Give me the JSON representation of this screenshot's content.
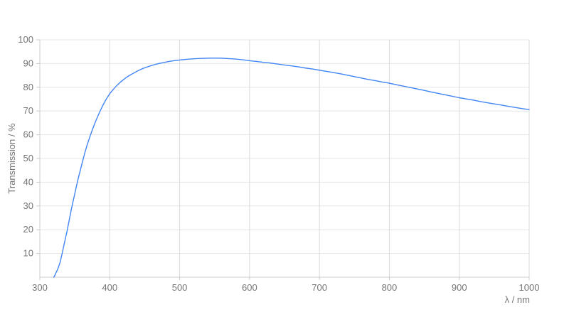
{
  "chart_data": {
    "type": "line",
    "title": "",
    "xlabel": "λ / nm",
    "ylabel": "Transmission / %",
    "xlim": [
      300,
      1000
    ],
    "ylim": [
      0,
      100
    ],
    "x_ticks": [
      300,
      400,
      500,
      600,
      700,
      800,
      900,
      1000
    ],
    "y_ticks": [
      10,
      20,
      30,
      40,
      50,
      60,
      70,
      80,
      90,
      100
    ],
    "grid": true,
    "legend": false,
    "series": [
      {
        "name": "transmission-curve",
        "color": "#4285f4",
        "points": [
          [
            320,
            0
          ],
          [
            321.5,
            0.8
          ],
          [
            323,
            1.8
          ],
          [
            325,
            3
          ],
          [
            327,
            4.5
          ],
          [
            329,
            6.3
          ],
          [
            331,
            8.8
          ],
          [
            333,
            11.5
          ],
          [
            336,
            15.5
          ],
          [
            339,
            19.5
          ],
          [
            342,
            24
          ],
          [
            345,
            28.5
          ],
          [
            348,
            32.5
          ],
          [
            351,
            36.5
          ],
          [
            354,
            40.5
          ],
          [
            357,
            44
          ],
          [
            360,
            47.5
          ],
          [
            364,
            52
          ],
          [
            368,
            56
          ],
          [
            372,
            59.5
          ],
          [
            376,
            62.8
          ],
          [
            380,
            65.8
          ],
          [
            385,
            69.2
          ],
          [
            390,
            72.3
          ],
          [
            395,
            75
          ],
          [
            400,
            77.3
          ],
          [
            405,
            79.1
          ],
          [
            410,
            80.7
          ],
          [
            415,
            82.1
          ],
          [
            420,
            83.3
          ],
          [
            425,
            84.4
          ],
          [
            430,
            85.3
          ],
          [
            435,
            86.1
          ],
          [
            440,
            86.9
          ],
          [
            445,
            87.6
          ],
          [
            450,
            88.2
          ],
          [
            455,
            88.7
          ],
          [
            460,
            89.2
          ],
          [
            465,
            89.6
          ],
          [
            470,
            90
          ],
          [
            475,
            90.3
          ],
          [
            480,
            90.6
          ],
          [
            485,
            90.9
          ],
          [
            490,
            91.1
          ],
          [
            495,
            91.3
          ],
          [
            500,
            91.5
          ],
          [
            510,
            91.8
          ],
          [
            520,
            92
          ],
          [
            530,
            92.15
          ],
          [
            540,
            92.25
          ],
          [
            550,
            92.3
          ],
          [
            560,
            92.25
          ],
          [
            570,
            92.1
          ],
          [
            580,
            91.9
          ],
          [
            590,
            91.6
          ],
          [
            600,
            91.2
          ],
          [
            610,
            90.9
          ],
          [
            620,
            90.5
          ],
          [
            630,
            90.2
          ],
          [
            640,
            89.8
          ],
          [
            650,
            89.4
          ],
          [
            660,
            89
          ],
          [
            670,
            88.6
          ],
          [
            680,
            88.1
          ],
          [
            690,
            87.7
          ],
          [
            700,
            87.2
          ],
          [
            710,
            86.7
          ],
          [
            720,
            86.2
          ],
          [
            730,
            85.7
          ],
          [
            740,
            85.1
          ],
          [
            750,
            84.5
          ],
          [
            760,
            83.9
          ],
          [
            770,
            83.3
          ],
          [
            780,
            82.8
          ],
          [
            790,
            82.2
          ],
          [
            800,
            81.7
          ],
          [
            810,
            81.1
          ],
          [
            820,
            80.5
          ],
          [
            830,
            79.9
          ],
          [
            840,
            79.3
          ],
          [
            850,
            78.7
          ],
          [
            860,
            78
          ],
          [
            870,
            77.4
          ],
          [
            880,
            76.8
          ],
          [
            890,
            76.2
          ],
          [
            900,
            75.6
          ],
          [
            910,
            75.1
          ],
          [
            920,
            74.6
          ],
          [
            930,
            74
          ],
          [
            940,
            73.5
          ],
          [
            950,
            73
          ],
          [
            960,
            72.5
          ],
          [
            970,
            72
          ],
          [
            980,
            71.5
          ],
          [
            990,
            71
          ],
          [
            1000,
            70.6
          ]
        ]
      }
    ]
  },
  "colors": {
    "background": "#ffffff",
    "grid_horizontal": "#e6e6e6",
    "grid_vertical": "#d9d9d9",
    "axis_line": "#cccccc",
    "tick_mark": "#cccccc",
    "text": "#757575",
    "line": "#4285f4"
  }
}
